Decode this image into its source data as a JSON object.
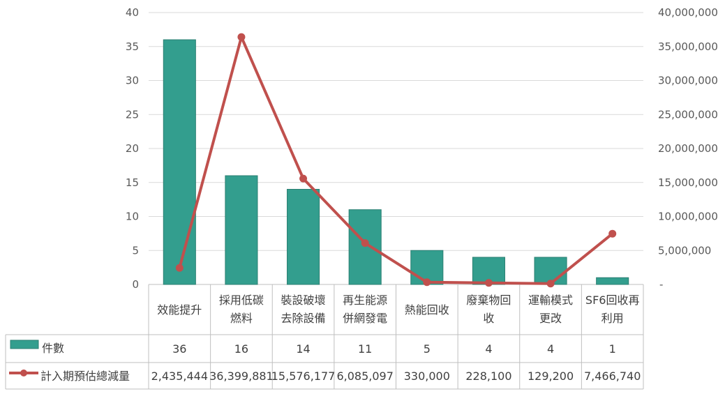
{
  "chart_data": {
    "type": "bar+line",
    "categories": [
      [
        "效能提升"
      ],
      [
        "採用低碳",
        "燃料"
      ],
      [
        "裝設破壞",
        "去除設備"
      ],
      [
        "再生能源",
        "併網發電"
      ],
      [
        "熱能回收"
      ],
      [
        "廢棄物回",
        "收"
      ],
      [
        "運輸模式",
        "更改"
      ],
      [
        "SF6回收再",
        "利用"
      ]
    ],
    "series": [
      {
        "name": "件數",
        "type": "bar",
        "axis": "left",
        "color": "#339E8E",
        "values": [
          36,
          16,
          14,
          11,
          5,
          4,
          4,
          1
        ],
        "labels": [
          "36",
          "16",
          "14",
          "11",
          "5",
          "4",
          "4",
          "1"
        ]
      },
      {
        "name": "計入期預估總減量",
        "type": "line",
        "axis": "right",
        "color": "#C0504D",
        "values": [
          2435444,
          36399881,
          15576177,
          6085097,
          330000,
          228100,
          129200,
          7466740
        ],
        "labels": [
          "2,435,444",
          "36,399,881",
          "15,576,177",
          "6,085,097",
          "330,000",
          "228,100",
          "129,200",
          "7,466,740"
        ]
      }
    ],
    "y_left": {
      "range": [
        0,
        40
      ],
      "ticks": [
        0,
        5,
        10,
        15,
        20,
        25,
        30,
        35,
        40
      ],
      "tick_labels": [
        "0",
        "5",
        "10",
        "15",
        "20",
        "25",
        "30",
        "35",
        "40"
      ]
    },
    "y_right": {
      "range": [
        0,
        40000000
      ],
      "ticks": [
        0,
        5000000,
        10000000,
        15000000,
        20000000,
        25000000,
        30000000,
        35000000,
        40000000
      ],
      "tick_labels": [
        "-",
        "5,000,000",
        "10,000,000",
        "15,000,000",
        "20,000,000",
        "25,000,000",
        "30,000,000",
        "35,000,000",
        "40,000,000"
      ]
    },
    "grid": true,
    "data_table": true
  }
}
